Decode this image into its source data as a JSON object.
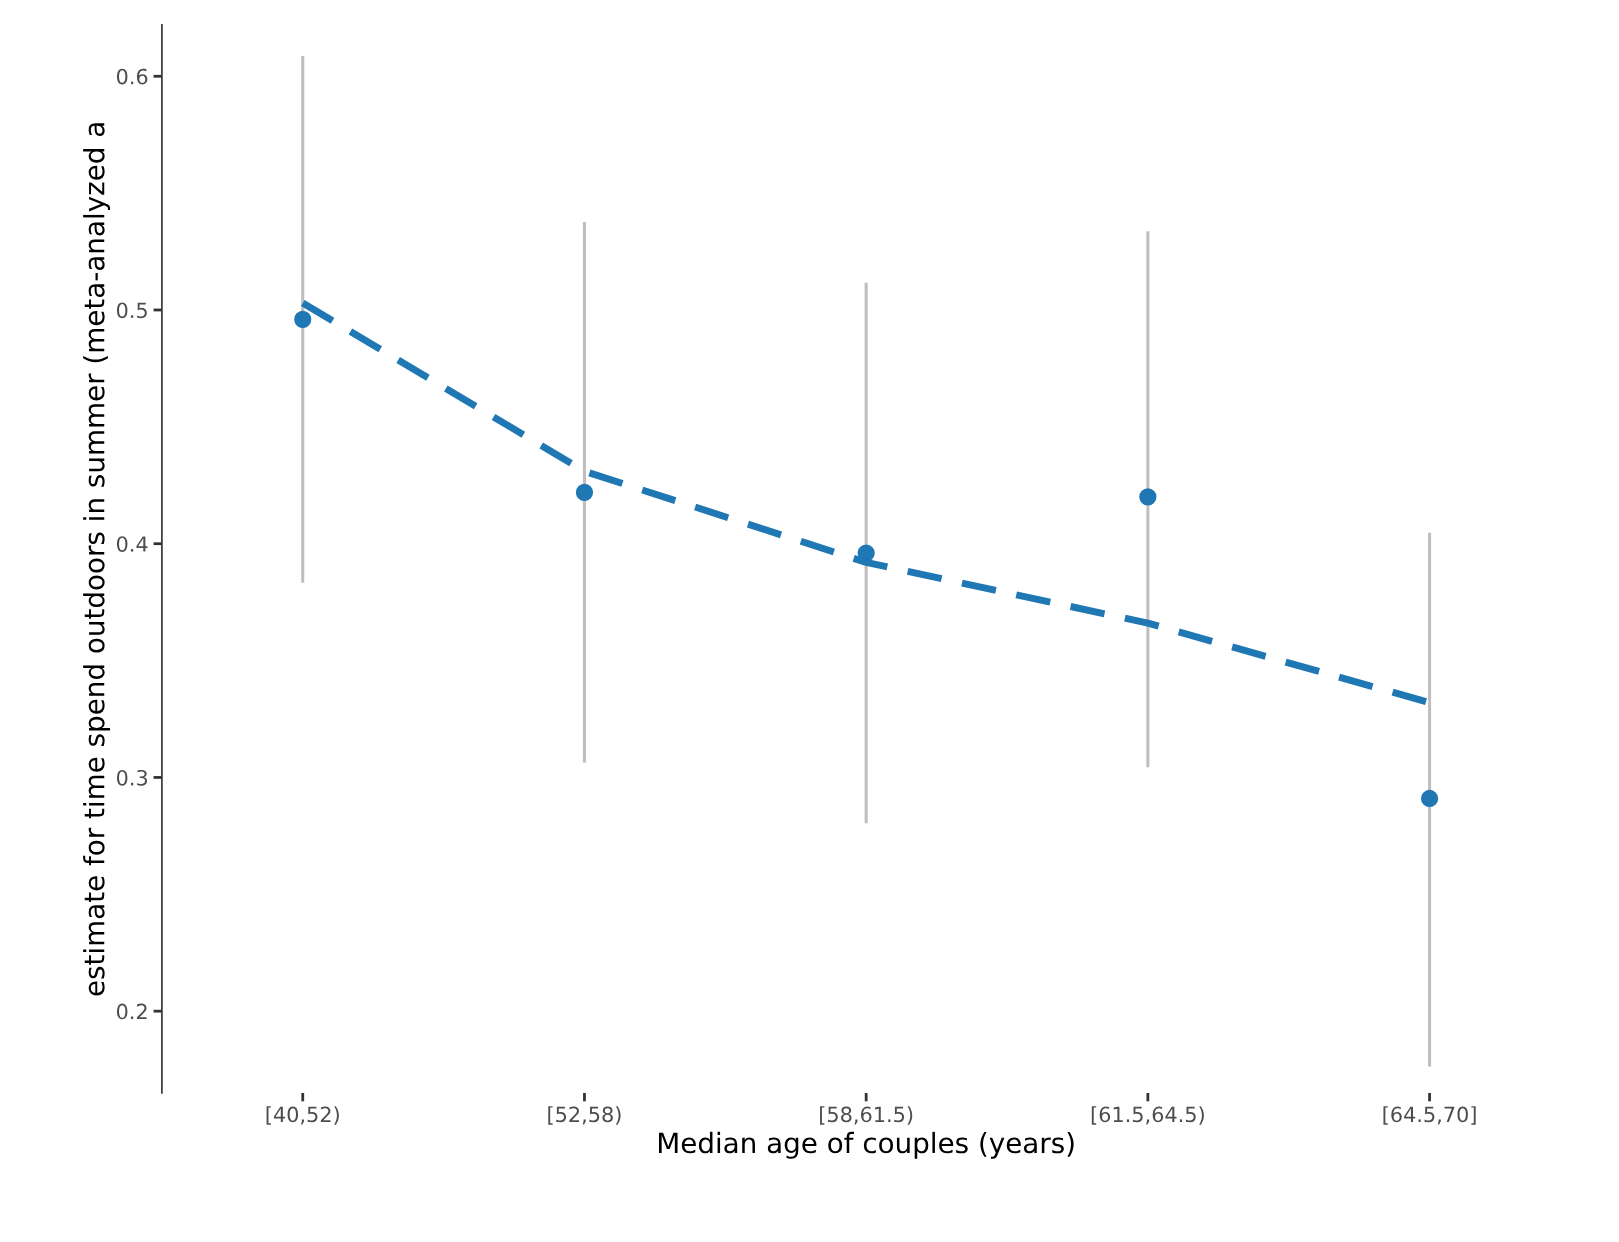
{
  "chart_data": {
    "type": "scatter",
    "xlabel": "Median age of couples (years)",
    "ylabel": "estimate for time spend outdoors in summer (meta-analyzed a",
    "categories": [
      "[40,52)",
      "[52,58)",
      "[58,61.5)",
      "[61.5,64.5)",
      "[64.5,70]"
    ],
    "series": [
      {
        "color": "#1f77b4",
        "values": [
          0.496,
          0.422,
          0.396,
          0.42,
          0.291
        ],
        "errors": [
          [
            0.384,
            0.608
          ],
          [
            0.307,
            0.537
          ],
          [
            0.281,
            0.511
          ],
          [
            0.305,
            0.533
          ],
          [
            0.177,
            0.404
          ]
        ]
      },
      {
        "type": "line",
        "color": "#1f77b4",
        "values": [
          0.503,
          0.431,
          0.392,
          0.366,
          0.332
        ],
        "line_style": "dashed",
        "marker": "none"
      }
    ],
    "marker": "circle",
    "ylim": [
      0.165,
      0.622
    ],
    "yticks": [
      0.2,
      0.3,
      0.4,
      0.5,
      0.6
    ],
    "grid": false,
    "legend": false
  }
}
